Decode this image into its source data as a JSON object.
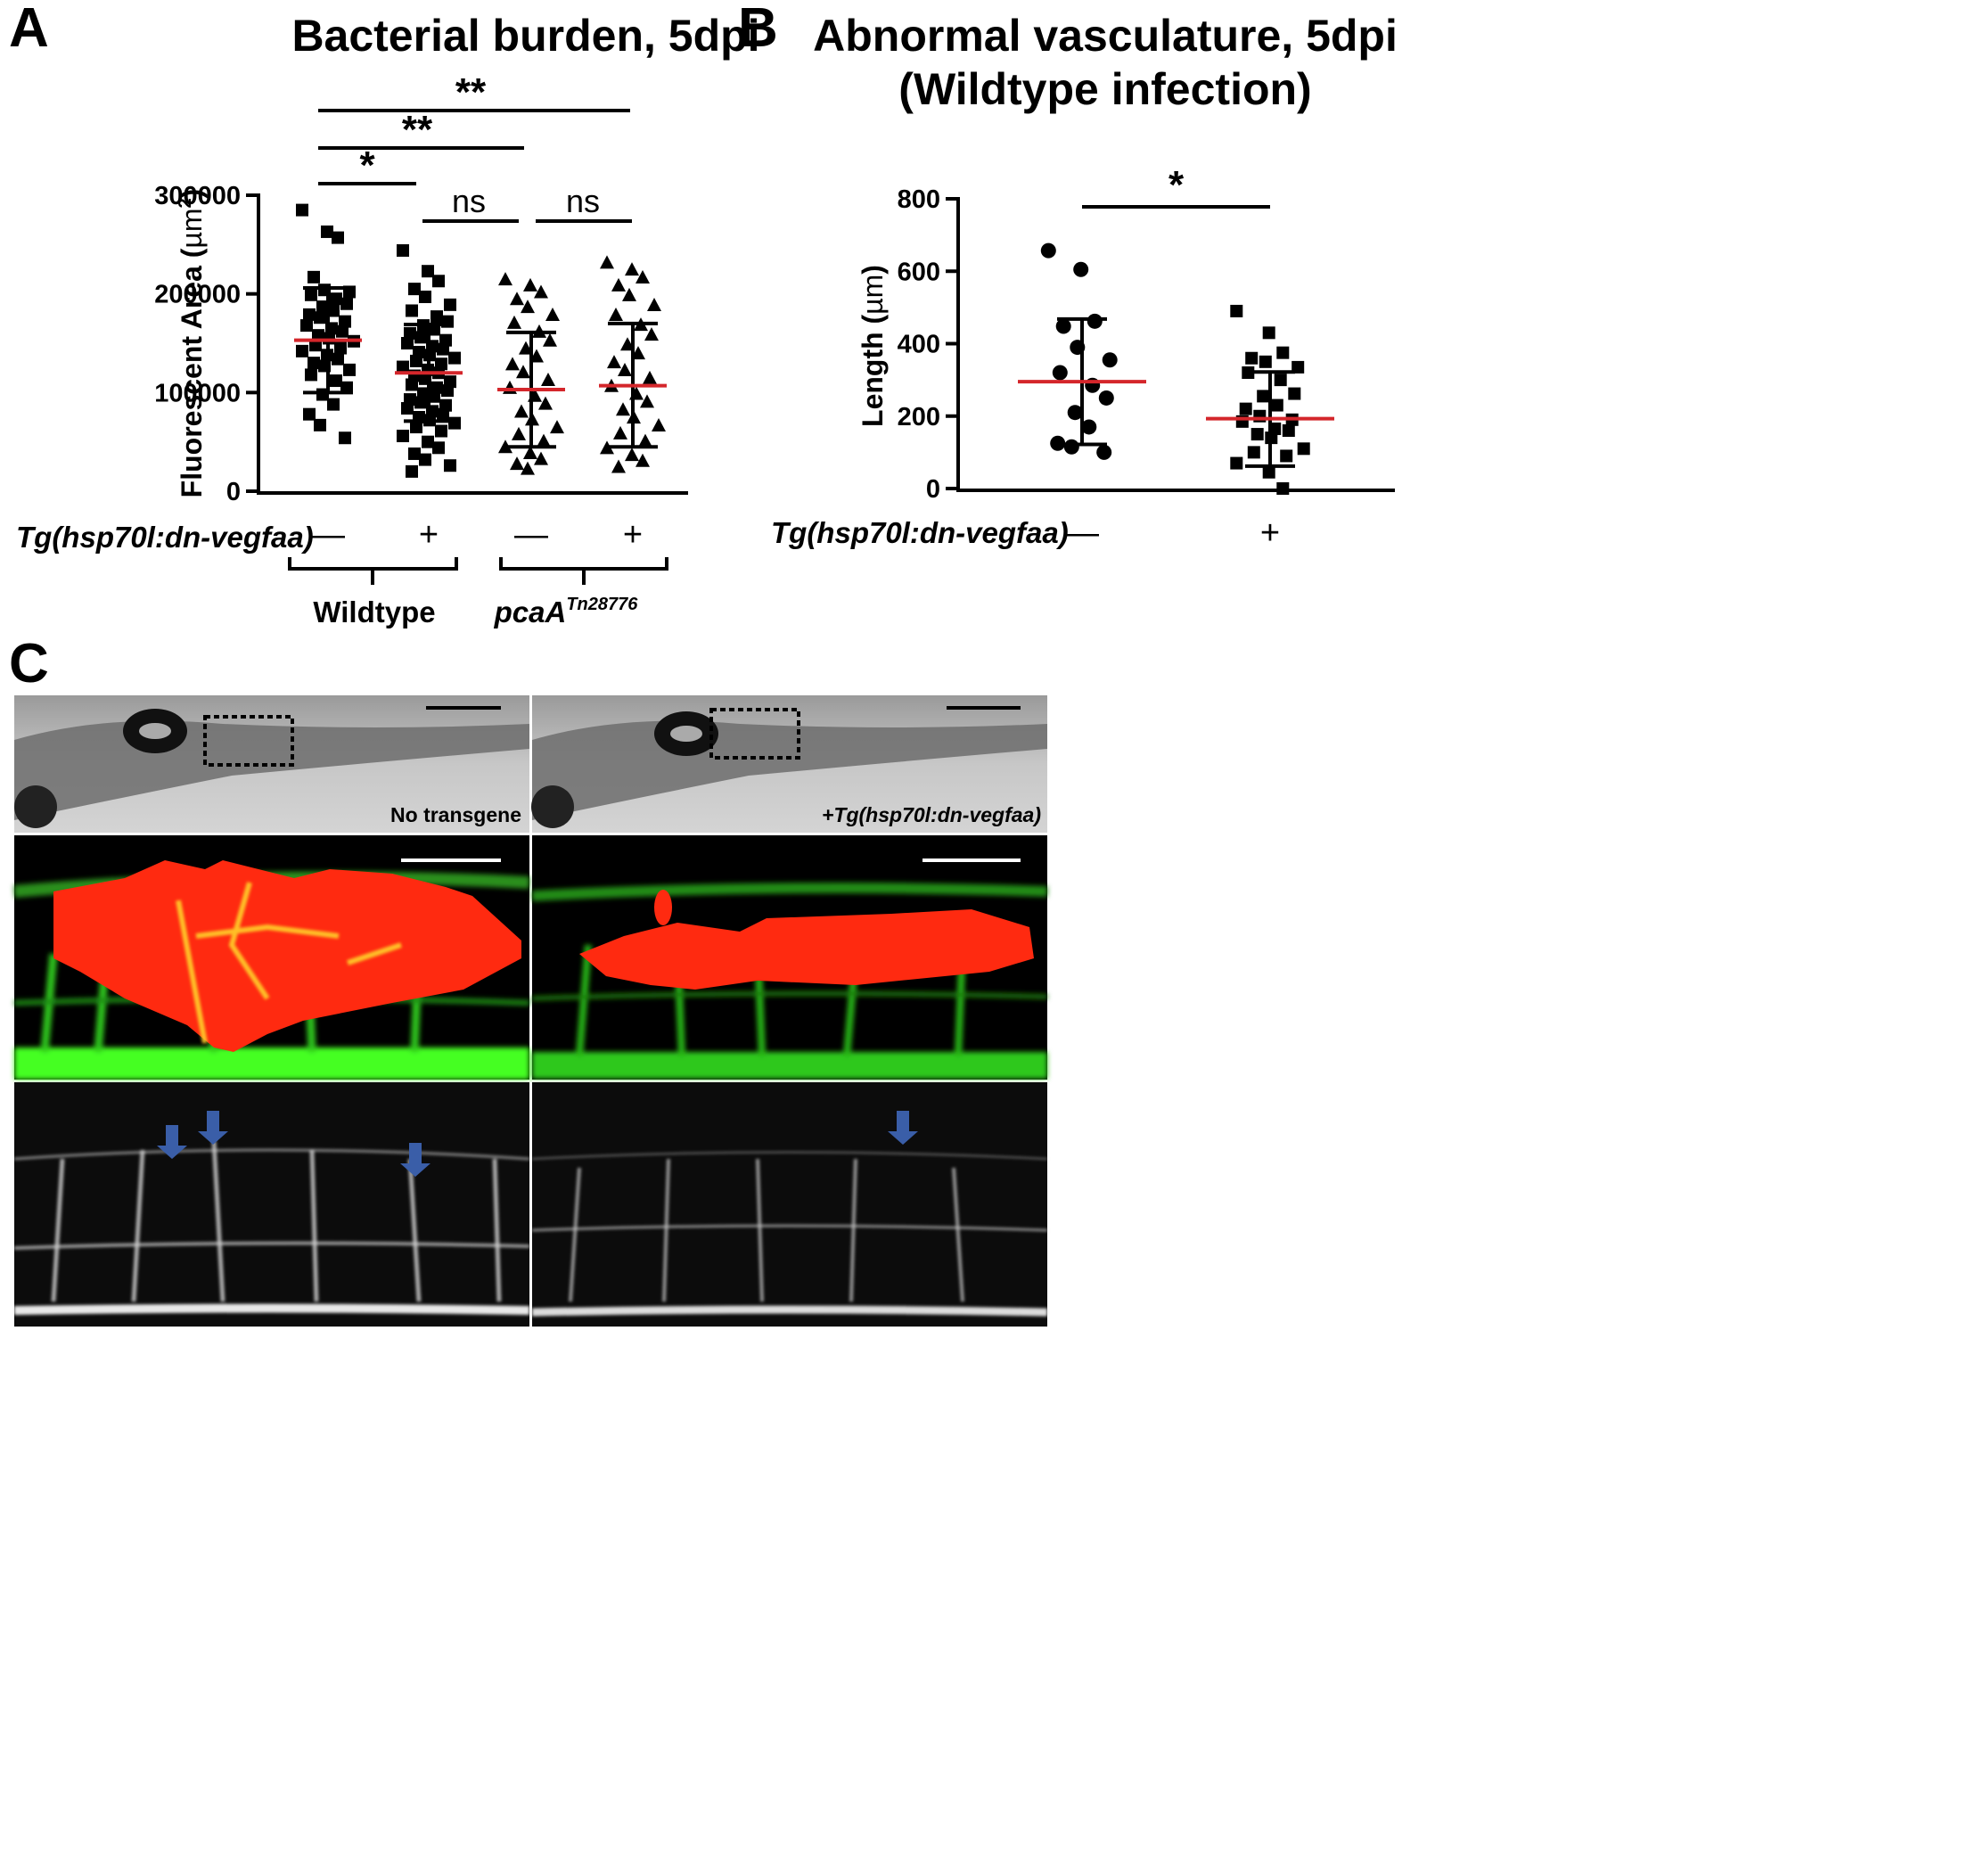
{
  "panels": {
    "a": {
      "letter": "A",
      "chart_data": {
        "type": "scatter",
        "title": "Bacterial burden, 5dpi",
        "ylabel_main": "Fluorescent Area (",
        "ylabel_unit": "µm",
        "ylabel_sup": "2",
        "ylabel_close": ")",
        "ylim": [
          0,
          300000
        ],
        "yticks": [
          0,
          100000,
          200000,
          300000
        ],
        "ytick_labels": [
          "0",
          "100000",
          "200000",
          "300000"
        ],
        "row_label": "Tg(hsp70l:dn-vegfaa)",
        "groups": [
          {
            "label": "Wildtype",
            "superscript": ""
          },
          {
            "label": "pcaA",
            "superscript": "Tn28776"
          }
        ],
        "series": [
          {
            "sign": "—",
            "marker": "square",
            "mean": 153000,
            "sd_low": 100000,
            "sd_high": 206000,
            "values": [
              285000,
              263000,
              257000,
              217000,
              204000,
              202000,
              199000,
              195000,
              190000,
              187000,
              183000,
              179000,
              176000,
              172000,
              168000,
              165000,
              162000,
              158000,
              155000,
              152000,
              148000,
              145000,
              142000,
              138000,
              134000,
              130000,
              127000,
              123000,
              118000,
              112000,
              105000,
              98000,
              88000,
              78000,
              67000,
              54000
            ]
          },
          {
            "sign": "+",
            "marker": "square",
            "mean": 120000,
            "sd_low": 71000,
            "sd_high": 169000,
            "values": [
              244000,
              223000,
              213000,
              205000,
              197000,
              189000,
              183000,
              177000,
              172000,
              168000,
              164000,
              160000,
              156000,
              153000,
              150000,
              147000,
              144000,
              141000,
              138000,
              135000,
              132000,
              129000,
              126000,
              123000,
              120000,
              117000,
              114000,
              111000,
              108000,
              105000,
              102000,
              99000,
              96000,
              93000,
              90000,
              87000,
              84000,
              81000,
              78000,
              75000,
              72000,
              69000,
              65000,
              61000,
              56000,
              50000,
              44000,
              38000,
              32000,
              26000,
              20000
            ]
          },
          {
            "sign": "—",
            "marker": "triangle",
            "mean": 103000,
            "sd_low": 45000,
            "sd_high": 161000,
            "values": [
              214000,
              208000,
              201000,
              194000,
              186000,
              178000,
              170000,
              161000,
              152000,
              144000,
              136000,
              128000,
              120000,
              112000,
              104000,
              96000,
              88000,
              80000,
              72000,
              64000,
              57000,
              50000,
              44000,
              38000,
              32000,
              27000,
              22000
            ]
          },
          {
            "sign": "+",
            "marker": "triangle",
            "mean": 107000,
            "sd_low": 45000,
            "sd_high": 170000,
            "values": [
              231000,
              224000,
              216000,
              208000,
              198000,
              188000,
              178000,
              168000,
              158000,
              148000,
              139000,
              130000,
              122000,
              114000,
              106000,
              98000,
              90000,
              82000,
              74000,
              66000,
              58000,
              50000,
              43000,
              36000,
              30000,
              24000
            ]
          }
        ],
        "comparisons": [
          {
            "from": 0,
            "to": 1,
            "label": "*"
          },
          {
            "from": 0,
            "to": 2,
            "label": "**"
          },
          {
            "from": 0,
            "to": 3,
            "label": "**"
          },
          {
            "from": 1,
            "to": 2,
            "label": "ns"
          },
          {
            "from": 2,
            "to": 3,
            "label": "ns"
          }
        ]
      }
    },
    "b": {
      "letter": "B",
      "chart_data": {
        "type": "scatter",
        "title_line1": "Abnormal vasculature, 5dpi",
        "title_line2": "(Wildtype infection)",
        "ylabel_main": "Length (",
        "ylabel_unit": "µm",
        "ylabel_close": ")",
        "ylim": [
          0,
          800
        ],
        "yticks": [
          0,
          200,
          400,
          600,
          800
        ],
        "ytick_labels": [
          "0",
          "200",
          "400",
          "600",
          "800"
        ],
        "row_label": "Tg(hsp70l:dn-vegfaa)",
        "series": [
          {
            "sign": "—",
            "marker": "circle",
            "mean": 295,
            "sd_low": 122,
            "sd_high": 468,
            "values": [
              657,
              605,
              462,
              448,
              390,
              355,
              320,
              285,
              250,
              210,
              170,
              125,
              115,
              100
            ]
          },
          {
            "sign": "+",
            "marker": "square",
            "mean": 193,
            "sd_low": 62,
            "sd_high": 322,
            "values": [
              490,
              430,
              375,
              360,
              350,
              335,
              320,
              300,
              262,
              255,
              230,
              220,
              200,
              190,
              185,
              165,
              160,
              150,
              140,
              110,
              100,
              90,
              70,
              45,
              0
            ]
          }
        ],
        "comparisons": [
          {
            "from": 0,
            "to": 1,
            "label": "*"
          }
        ]
      }
    },
    "c": {
      "letter": "C",
      "left_caption": "No transgene",
      "right_caption": "+Tg(hsp70l:dn-vegfaa)"
    }
  },
  "colors": {
    "mean_line": "#d4262b",
    "arrow": "#3a5ea8",
    "bacteria": "#ff2a10",
    "vessel": "#33ee1a"
  }
}
